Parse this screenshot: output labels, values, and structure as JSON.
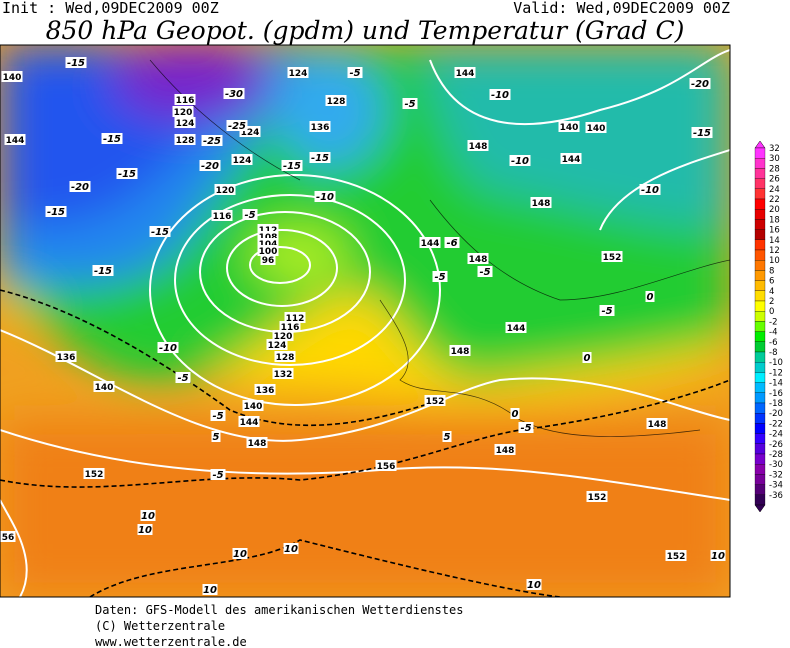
{
  "header": {
    "init": "Init : Wed,09DEC2009 00Z",
    "valid": "Valid: Wed,09DEC2009 00Z",
    "title": "850 hPa Geopot. (gpdm) und Temperatur (Grad C)"
  },
  "footer": [
    "Daten: GFS-Modell des amerikanischen Wetterdienstes",
    "(C) Wetterzentrale",
    "www.wetterzentrale.de"
  ],
  "colorbar": {
    "labels": [
      32,
      30,
      28,
      26,
      24,
      22,
      20,
      18,
      16,
      14,
      12,
      10,
      8,
      6,
      4,
      2,
      0,
      -2,
      -4,
      -6,
      -8,
      -10,
      -12,
      -14,
      -16,
      -18,
      -20,
      -22,
      -24,
      -26,
      -28,
      -30,
      -32,
      -34,
      -36
    ],
    "colors": [
      "#ff33ff",
      "#ff33cc",
      "#ff3399",
      "#ff3366",
      "#ff3333",
      "#ff0000",
      "#e60000",
      "#cc0000",
      "#b30000",
      "#ff3300",
      "#ff5500",
      "#ff7700",
      "#ff9900",
      "#ffbb00",
      "#ffdd00",
      "#ffff00",
      "#ccff00",
      "#66ff00",
      "#00ee00",
      "#00cc33",
      "#00cc99",
      "#00cccc",
      "#00eeff",
      "#00bbff",
      "#0099ff",
      "#0066ff",
      "#0033ff",
      "#0000ff",
      "#3300ff",
      "#5500dd",
      "#7700cc",
      "#8800aa",
      "#770099",
      "#550077",
      "#330055"
    ]
  },
  "geopotential_labels": [
    "140",
    "144",
    "116",
    "120",
    "124",
    "128",
    "124",
    "128",
    "136",
    "124",
    "124",
    "120",
    "116",
    "112",
    "108",
    "104",
    "100",
    "96",
    "112",
    "116",
    "120",
    "124",
    "128",
    "132",
    "136",
    "140",
    "144",
    "148",
    "152",
    "156",
    "136",
    "140",
    "144",
    "140",
    "140",
    "144",
    "148",
    "148",
    "144",
    "148",
    "152",
    "144",
    "148",
    "152",
    "148",
    "148",
    "152",
    "152",
    "56"
  ],
  "temperature_labels": [
    "-15",
    "-30",
    "-25",
    "-25",
    "-20",
    "-15",
    "-15",
    "-20",
    "-15",
    "-15",
    "-15",
    "-10",
    "-5",
    "-5",
    "-5",
    "10",
    "10",
    "10",
    "10",
    "10",
    "10",
    "10",
    "-15",
    "-15",
    "-10",
    "-5",
    "-5",
    "-5",
    "-10",
    "-10",
    "-10",
    "-15",
    "-20",
    "-5",
    "-5",
    "-6",
    "-5",
    "0",
    "0",
    "0",
    "-5",
    "5",
    "5"
  ]
}
